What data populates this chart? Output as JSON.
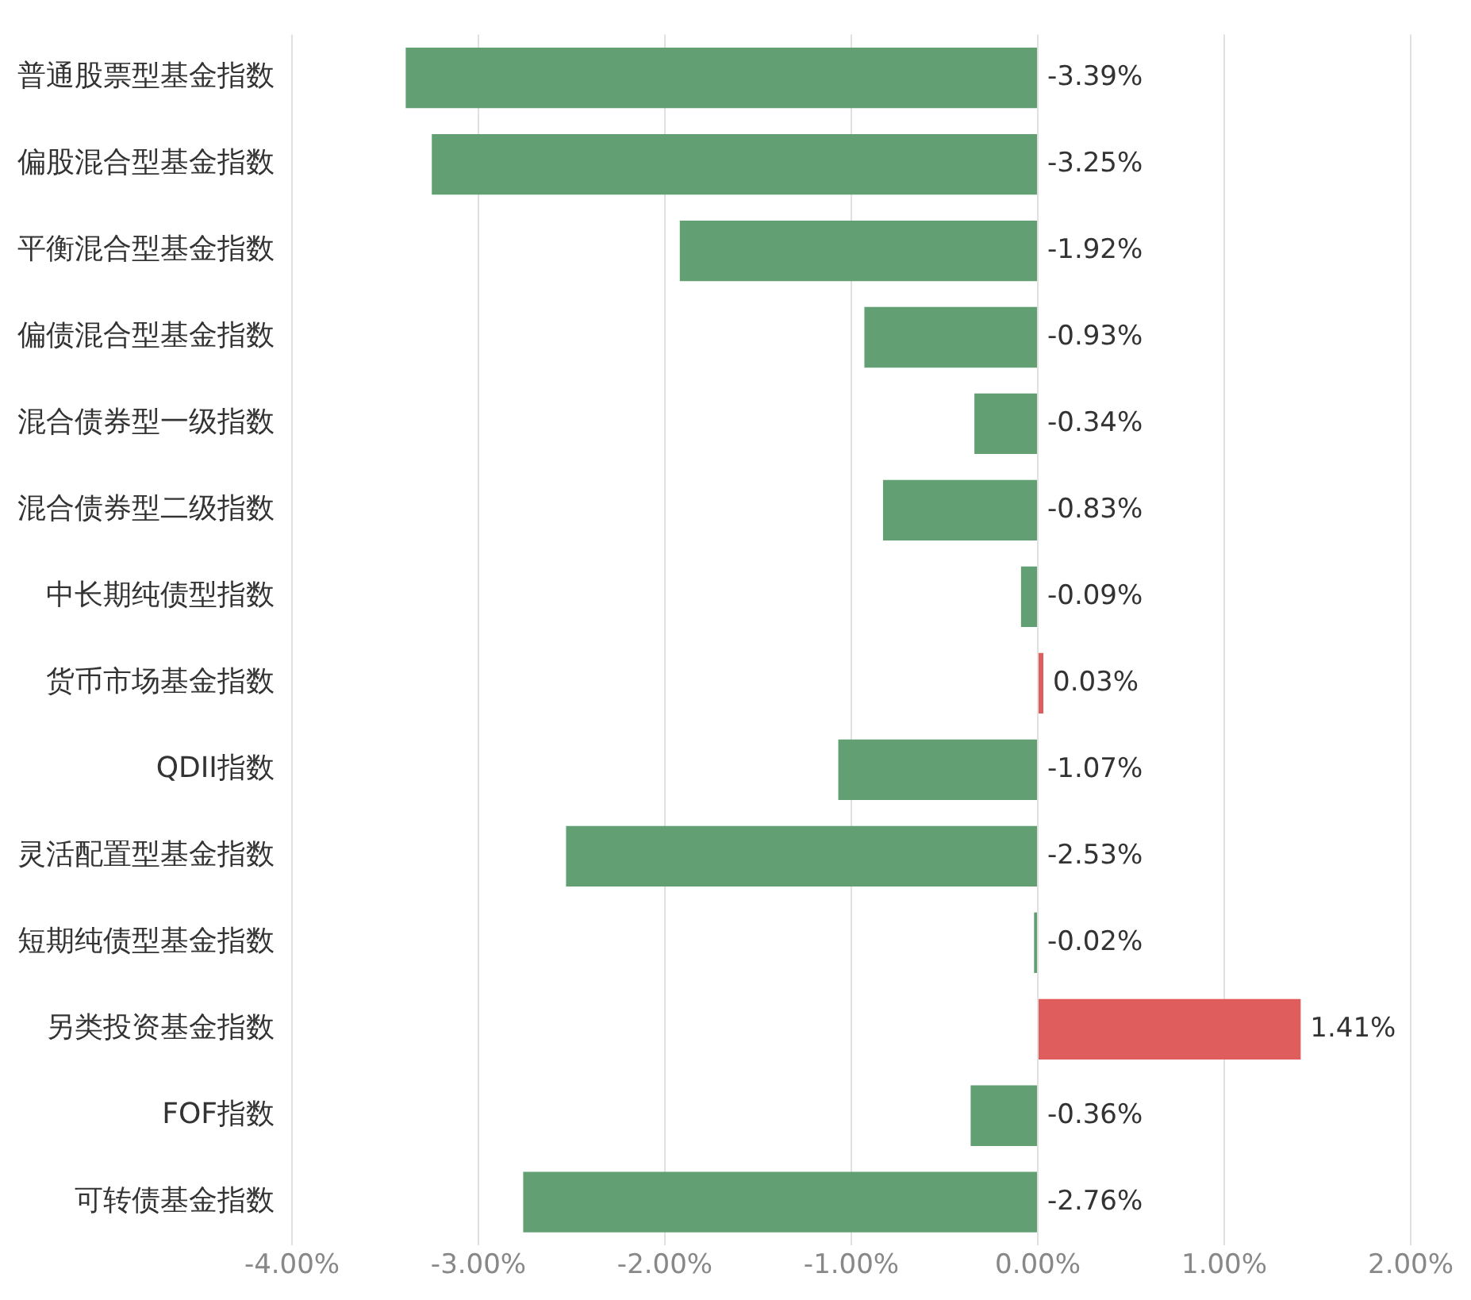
{
  "chart_data": {
    "type": "bar",
    "orientation": "horizontal",
    "categories": [
      "普通股票型基金指数",
      "偏股混合型基金指数",
      "平衡混合型基金指数",
      "偏债混合型基金指数",
      "混合债券型一级指数",
      "混合债券型二级指数",
      "中长期纯债型指数",
      "货币市场基金指数",
      "QDII指数",
      "灵活配置型基金指数",
      "短期纯债型基金指数",
      "另类投资基金指数",
      "FOF指数",
      "可转债基金指数"
    ],
    "values": [
      -3.39,
      -3.25,
      -1.92,
      -0.93,
      -0.34,
      -0.83,
      -0.09,
      0.03,
      -1.07,
      -2.53,
      -0.02,
      1.41,
      -0.36,
      -2.76
    ],
    "value_labels": [
      "-3.39%",
      "-3.25%",
      "-1.92%",
      "-0.93%",
      "-0.34%",
      "-0.83%",
      "-0.09%",
      "0.03%",
      "-1.07%",
      "-2.53%",
      "-0.02%",
      "1.41%",
      "-0.36%",
      "-2.76%"
    ],
    "colors": [
      "#62a073",
      "#62a073",
      "#62a073",
      "#62a073",
      "#62a073",
      "#62a073",
      "#62a073",
      "#e05d5d",
      "#62a073",
      "#62a073",
      "#62a073",
      "#e05d5d",
      "#62a073",
      "#62a073"
    ],
    "xlim": [
      -4,
      2
    ],
    "xticks": [
      {
        "value": -4,
        "label": "-4.00%"
      },
      {
        "value": -3,
        "label": "-3.00%"
      },
      {
        "value": -2,
        "label": "-2.00%"
      },
      {
        "value": -1,
        "label": "-1.00%"
      },
      {
        "value": 0,
        "label": "0.00%"
      },
      {
        "value": 1,
        "label": "1.00%"
      },
      {
        "value": 2,
        "label": "2.00%"
      }
    ],
    "grid": "x"
  }
}
